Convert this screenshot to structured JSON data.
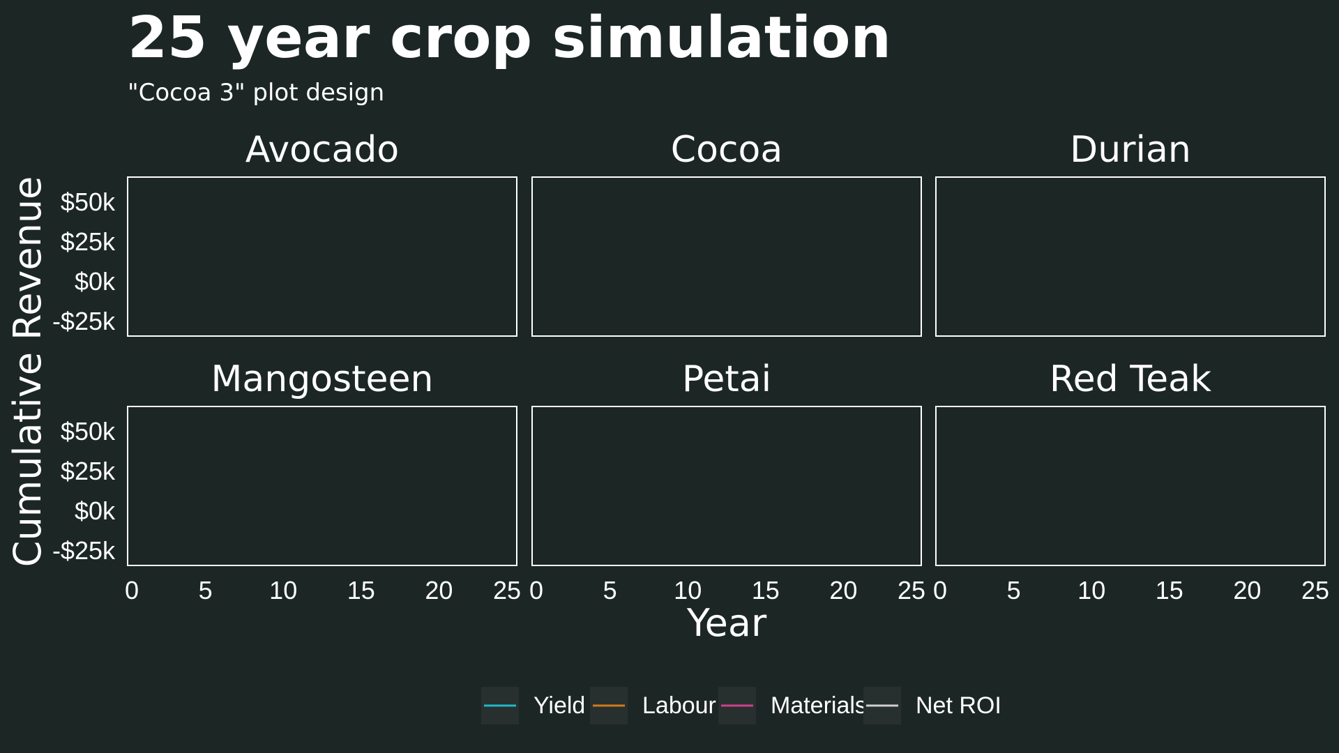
{
  "chart_data": {
    "type": "line",
    "title": "25 year crop simulation",
    "subtitle": "\"Cocoa 3\" plot design",
    "xlabel": "Year",
    "ylabel": "Cumulative Revenue",
    "facets": [
      "Avocado",
      "Cocoa",
      "Durian",
      "Mangosteen",
      "Petai",
      "Red Teak"
    ],
    "xlim": [
      0,
      25
    ],
    "ylim": [
      -35000,
      65000
    ],
    "x_ticks": [
      0,
      5,
      10,
      15,
      20,
      25
    ],
    "x_tick_labels": [
      "0",
      "5",
      "10",
      "15",
      "20",
      "25"
    ],
    "y_ticks": [
      -25000,
      0,
      25000,
      50000
    ],
    "y_tick_labels": [
      "-$25k",
      "$0k",
      "$25k",
      "$50k"
    ],
    "grid": false,
    "legend_position": "bottom",
    "series": [
      {
        "name": "Yield",
        "color": "#1fb8c7",
        "values": []
      },
      {
        "name": "Labour",
        "color": "#d07a1c",
        "values": []
      },
      {
        "name": "Materials",
        "color": "#cc3f8a",
        "values": []
      },
      {
        "name": "Net ROI",
        "color": "#d0d0d0",
        "values": []
      }
    ]
  },
  "colors": {
    "background": "#1c2625",
    "panel_border": "#ffffff",
    "text": "#ffffff",
    "legend_key_bg": "#27302f"
  }
}
